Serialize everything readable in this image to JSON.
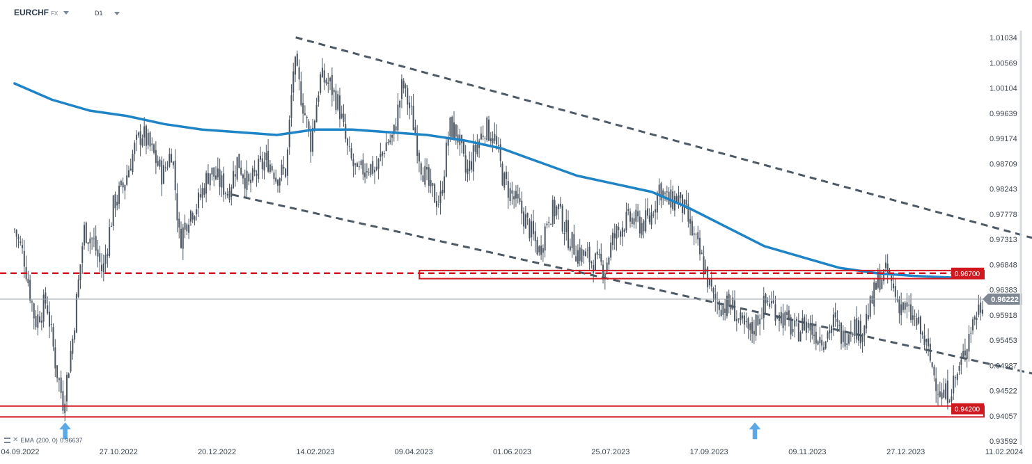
{
  "header": {
    "symbol": "EURCHF",
    "symbol_type": "FX",
    "timeframe": "D1"
  },
  "indicator": {
    "label": "EMA",
    "params": "(200, 0)",
    "value": "0.96637"
  },
  "colors": {
    "candle": "#4a5561",
    "ema": "#1e84c6",
    "trendline": "#4d5964",
    "support_resistance": "#d0191f",
    "price_line": "#9aa2aa",
    "price_tag": "#7f8893",
    "arrow": "#5aa8e6"
  },
  "chart_data": {
    "type": "candlestick",
    "x_ticks": [
      "04.09.2022",
      "27.10.2022",
      "20.12.2022",
      "14.02.2023",
      "09.04.2023",
      "01.06.2023",
      "25.07.2023",
      "17.09.2023",
      "09.11.2023",
      "27.12.2023",
      "11.02.2024"
    ],
    "y_ticks": [
      "1.01034",
      "1.00569",
      "1.00104",
      "0.99639",
      "0.99174",
      "0.98709",
      "0.98243",
      "0.97778",
      "0.97313",
      "0.96848",
      "0.96383",
      "0.95918",
      "0.95453",
      "0.94987",
      "0.94522",
      "0.94057",
      "0.93592"
    ],
    "ylim": [
      0.93592,
      1.01034
    ],
    "current_price": "0.96222",
    "levels": [
      {
        "value": 0.967,
        "label": "0.96700"
      },
      {
        "value": 0.942,
        "label": "0.94200"
      }
    ],
    "price_path": [
      [
        "2022-09-01",
        0.975
      ],
      [
        "2022-09-06",
        0.97
      ],
      [
        "2022-09-12",
        0.958
      ],
      [
        "2022-09-18",
        0.962
      ],
      [
        "2022-09-23",
        0.95
      ],
      [
        "2022-09-27",
        0.943
      ],
      [
        "2022-10-02",
        0.955
      ],
      [
        "2022-10-08",
        0.975
      ],
      [
        "2022-10-13",
        0.973
      ],
      [
        "2022-10-18",
        0.967
      ],
      [
        "2022-10-24",
        0.98
      ],
      [
        "2022-10-29",
        0.983
      ],
      [
        "2022-11-04",
        0.99
      ],
      [
        "2022-11-08",
        0.993
      ],
      [
        "2022-11-14",
        0.989
      ],
      [
        "2022-11-19",
        0.985
      ],
      [
        "2022-11-24",
        0.99
      ],
      [
        "2022-11-28",
        0.973
      ],
      [
        "2022-12-03",
        0.978
      ],
      [
        "2022-12-08",
        0.98
      ],
      [
        "2022-12-14",
        0.986
      ],
      [
        "2022-12-19",
        0.984
      ],
      [
        "2022-12-24",
        0.982
      ],
      [
        "2022-12-29",
        0.988
      ],
      [
        "2023-01-04",
        0.983
      ],
      [
        "2023-01-09",
        0.986
      ],
      [
        "2023-01-14",
        0.988
      ],
      [
        "2023-01-19",
        0.985
      ],
      [
        "2023-01-24",
        0.986
      ],
      [
        "2023-01-28",
        1.006
      ],
      [
        "2023-02-02",
        0.998
      ],
      [
        "2023-02-06",
        0.991
      ],
      [
        "2023-02-11",
        1.003
      ],
      [
        "2023-02-16",
        1.002
      ],
      [
        "2023-02-21",
        0.998
      ],
      [
        "2023-02-26",
        0.989
      ],
      [
        "2023-03-03",
        0.985
      ],
      [
        "2023-03-08",
        0.987
      ],
      [
        "2023-03-13",
        0.986
      ],
      [
        "2023-03-18",
        0.991
      ],
      [
        "2023-03-22",
        0.992
      ],
      [
        "2023-03-27",
        1.002
      ],
      [
        "2023-04-01",
        0.996
      ],
      [
        "2023-04-06",
        0.987
      ],
      [
        "2023-04-11",
        0.982
      ],
      [
        "2023-04-16",
        0.98
      ],
      [
        "2023-04-21",
        0.994
      ],
      [
        "2023-04-25",
        0.993
      ],
      [
        "2023-04-30",
        0.985
      ],
      [
        "2023-05-05",
        0.99
      ],
      [
        "2023-05-10",
        0.994
      ],
      [
        "2023-05-15",
        0.992
      ],
      [
        "2023-05-20",
        0.984
      ],
      [
        "2023-05-25",
        0.981
      ],
      [
        "2023-05-30",
        0.978
      ],
      [
        "2023-06-03",
        0.975
      ],
      [
        "2023-06-08",
        0.971
      ],
      [
        "2023-06-13",
        0.978
      ],
      [
        "2023-06-18",
        0.979
      ],
      [
        "2023-06-23",
        0.974
      ],
      [
        "2023-06-28",
        0.971
      ],
      [
        "2023-07-03",
        0.97
      ],
      [
        "2023-07-08",
        0.969
      ],
      [
        "2023-07-13",
        0.968
      ],
      [
        "2023-07-17",
        0.973
      ],
      [
        "2023-07-22",
        0.976
      ],
      [
        "2023-07-27",
        0.977
      ],
      [
        "2023-08-01",
        0.976
      ],
      [
        "2023-08-06",
        0.977
      ],
      [
        "2023-08-11",
        0.983
      ],
      [
        "2023-08-16",
        0.98
      ],
      [
        "2023-08-21",
        0.981
      ],
      [
        "2023-08-25",
        0.978
      ],
      [
        "2023-08-30",
        0.973
      ],
      [
        "2023-09-04",
        0.968
      ],
      [
        "2023-09-09",
        0.962
      ],
      [
        "2023-09-14",
        0.961
      ],
      [
        "2023-09-19",
        0.961
      ],
      [
        "2023-09-24",
        0.957
      ],
      [
        "2023-09-29",
        0.956
      ],
      [
        "2023-10-04",
        0.96
      ],
      [
        "2023-10-08",
        0.962
      ],
      [
        "2023-10-13",
        0.96
      ],
      [
        "2023-10-18",
        0.958
      ],
      [
        "2023-10-23",
        0.956
      ],
      [
        "2023-10-28",
        0.958
      ],
      [
        "2023-11-02",
        0.956
      ],
      [
        "2023-11-07",
        0.955
      ],
      [
        "2023-11-12",
        0.958
      ],
      [
        "2023-11-17",
        0.955
      ],
      [
        "2023-11-22",
        0.958
      ],
      [
        "2023-11-26",
        0.956
      ],
      [
        "2023-12-01",
        0.96
      ],
      [
        "2023-12-06",
        0.966
      ],
      [
        "2023-12-11",
        0.967
      ],
      [
        "2023-12-16",
        0.962
      ],
      [
        "2023-12-21",
        0.96
      ],
      [
        "2023-12-26",
        0.958
      ],
      [
        "2023-12-31",
        0.954
      ],
      [
        "2024-01-05",
        0.948
      ],
      [
        "2024-01-09",
        0.944
      ],
      [
        "2024-01-14",
        0.946
      ],
      [
        "2024-01-19",
        0.95
      ],
      [
        "2024-01-24",
        0.957
      ],
      [
        "2024-01-29",
        0.961
      ],
      [
        "2024-02-03",
        0.962
      ],
      [
        "2024-02-08",
        0.963
      ],
      [
        "2024-02-13",
        0.965
      ],
      [
        "2024-02-18",
        0.967
      ],
      [
        "2024-02-22",
        0.962
      ]
    ],
    "ema": [
      [
        "2022-09-01",
        1.002
      ],
      [
        "2022-09-21",
        0.999
      ],
      [
        "2022-10-11",
        0.997
      ],
      [
        "2022-10-31",
        0.996
      ],
      [
        "2022-11-20",
        0.9945
      ],
      [
        "2022-12-10",
        0.9935
      ],
      [
        "2022-12-30",
        0.993
      ],
      [
        "2023-01-19",
        0.9925
      ],
      [
        "2023-02-08",
        0.9935
      ],
      [
        "2023-02-28",
        0.9935
      ],
      [
        "2023-03-20",
        0.993
      ],
      [
        "2023-04-09",
        0.9925
      ],
      [
        "2023-04-29",
        0.9915
      ],
      [
        "2023-05-19",
        0.99
      ],
      [
        "2023-06-08",
        0.9875
      ],
      [
        "2023-06-28",
        0.985
      ],
      [
        "2023-07-18",
        0.9835
      ],
      [
        "2023-08-07",
        0.982
      ],
      [
        "2023-08-27",
        0.979
      ],
      [
        "2023-09-16",
        0.9755
      ],
      [
        "2023-10-06",
        0.972
      ],
      [
        "2023-10-26",
        0.97
      ],
      [
        "2023-11-15",
        0.968
      ],
      [
        "2023-12-05",
        0.967
      ],
      [
        "2023-12-25",
        0.9665
      ],
      [
        "2024-01-14",
        0.9662
      ],
      [
        "2024-02-03",
        0.9663
      ],
      [
        "2024-02-22",
        0.9664
      ]
    ],
    "trend_upper": [
      [
        "2023-01-29",
        1.0105
      ],
      [
        "2024-07-24",
        0.9595
      ]
    ],
    "trend_lower": [
      [
        "2022-12-26",
        0.9815
      ],
      [
        "2024-07-29",
        0.9366
      ]
    ],
    "zones": [
      {
        "from": "2023-04-05",
        "to": "2024-08-26",
        "low": 0.966,
        "high": 0.9675
      },
      {
        "from": "2022-08-03",
        "to": "2024-08-26",
        "low": 0.9405,
        "high": 0.9425
      }
    ],
    "markers": [
      "2022-09-28",
      "2023-10-01"
    ]
  }
}
